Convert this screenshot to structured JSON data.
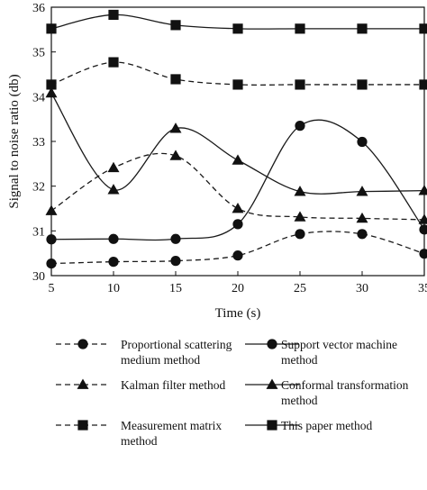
{
  "chart_data": {
    "type": "line",
    "xlabel": "Time (s)",
    "ylabel": "Signal to noise ratio (db)",
    "xlim": [
      5,
      35
    ],
    "ylim": [
      30,
      36
    ],
    "x_ticks": [
      5,
      10,
      15,
      20,
      25,
      30,
      35
    ],
    "y_ticks": [
      30,
      31,
      32,
      33,
      34,
      35,
      36
    ],
    "x_tick_labels": [
      "5",
      "10",
      "15",
      "20",
      "25",
      "30",
      "35"
    ],
    "y_tick_labels": [
      "30",
      "31",
      "32",
      "33",
      "34",
      "35",
      "36"
    ],
    "grid": false,
    "legend_position": "bottom",
    "x": [
      5,
      10,
      15,
      20,
      25,
      30,
      35
    ],
    "series": [
      {
        "name": "Proportional scattering medium method",
        "marker": "circle",
        "line_style": "dashed",
        "values": [
          30.27,
          30.31,
          30.33,
          30.45,
          30.93,
          30.93,
          30.49
        ]
      },
      {
        "name": "Support vector machine method",
        "marker": "circle",
        "line_style": "solid",
        "values": [
          30.81,
          30.82,
          30.82,
          31.15,
          33.35,
          32.99,
          31.03
        ]
      },
      {
        "name": "Kalman filter method",
        "marker": "triangle",
        "line_style": "dashed",
        "values": [
          31.45,
          32.41,
          32.68,
          31.5,
          31.31,
          31.28,
          31.25
        ]
      },
      {
        "name": "Conformal transformation method",
        "marker": "triangle",
        "line_style": "solid",
        "values": [
          34.08,
          31.92,
          33.29,
          32.58,
          31.88,
          31.88,
          31.9
        ]
      },
      {
        "name": "Measurement matrix method",
        "marker": "square",
        "line_style": "dashed",
        "values": [
          34.27,
          34.77,
          34.39,
          34.27,
          34.27,
          34.27,
          34.27
        ]
      },
      {
        "name": "This paper method",
        "marker": "square",
        "line_style": "solid",
        "values": [
          35.52,
          35.83,
          35.6,
          35.52,
          35.52,
          35.52,
          35.52
        ]
      }
    ],
    "legend": {
      "items": [
        {
          "series": 0,
          "label_lines": [
            "Proportional scattering",
            "medium method"
          ]
        },
        {
          "series": 1,
          "label_lines": [
            "Support vector machine",
            "method"
          ]
        },
        {
          "series": 2,
          "label_lines": [
            "Kalman filter method"
          ]
        },
        {
          "series": 3,
          "label_lines": [
            "Conformal transformation",
            "method"
          ]
        },
        {
          "series": 4,
          "label_lines": [
            "Measurement matrix",
            "method"
          ]
        },
        {
          "series": 5,
          "label_lines": [
            "This paper method"
          ]
        }
      ]
    },
    "colors": {
      "line": "#1a1a1a",
      "marker": "#111111",
      "background": "#ffffff"
    }
  }
}
